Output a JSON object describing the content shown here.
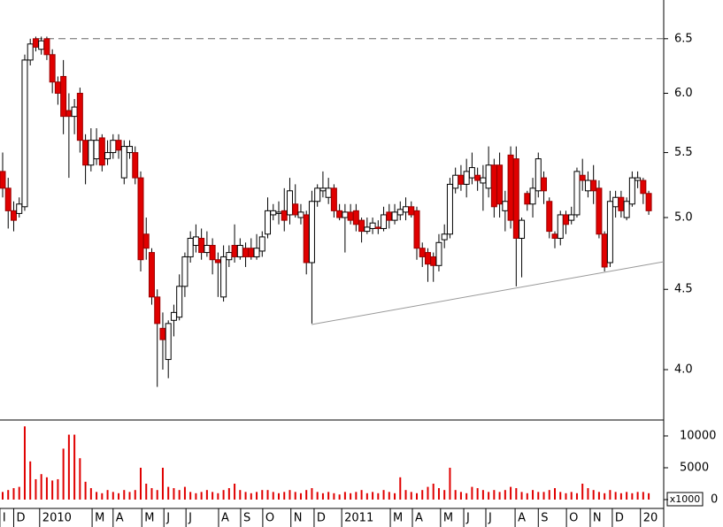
{
  "chart_data": [
    {
      "type": "candlestick",
      "log_scale": true,
      "ylim": [
        3.715,
        6.88
      ],
      "yticks": [
        {
          "value": 6.5,
          "label": "6.5"
        },
        {
          "value": 6,
          "label": "6.0"
        },
        {
          "value": 5.5,
          "label": "5.5"
        },
        {
          "value": 5,
          "label": "5.0"
        },
        {
          "value": 4.5,
          "label": "4.5"
        },
        {
          "value": 4,
          "label": "4.0"
        }
      ],
      "up_color": "#ffffff",
      "down_color": "#e00000",
      "reference_line": 6.5,
      "open": [
        5.35,
        5.22,
        5.05,
        5.03,
        5.08,
        6.3,
        6.5,
        6.4,
        6.5,
        6.35,
        6.1,
        6.15,
        5.85,
        5.8,
        6.0,
        5.6,
        5.4,
        5.45,
        5.62,
        5.45,
        5.5,
        5.6,
        5.3,
        5.5,
        5.5,
        5.3,
        4.88,
        4.75,
        4.45,
        4.25,
        4.06,
        4.3,
        4.32,
        4.52,
        4.72,
        4.8,
        4.85,
        4.75,
        4.8,
        4.7,
        4.45,
        4.7,
        4.8,
        4.72,
        4.78,
        4.78,
        4.72,
        4.76,
        4.88,
        5.02,
        5.03,
        5.05,
        5.02,
        5.1,
        5.0,
        5.02,
        4.68,
        5.12,
        5.2,
        5.15,
        5.22,
        5.05,
        5.0,
        5.04,
        5.05,
        4.98,
        4.9,
        4.92,
        4.93,
        4.92,
        5.04,
        4.98,
        5.02,
        5.04,
        5.08,
        5.05,
        4.78,
        4.75,
        4.72,
        4.66,
        4.84,
        4.88,
        5.22,
        5.32,
        5.25,
        5.3,
        5.32,
        5.26,
        5.22,
        5.4,
        5.4,
        5.05,
        5.48,
        5.45,
        4.85,
        5.18,
        5.1,
        5.2,
        5.3,
        5.12,
        4.88,
        4.85,
        5.02,
        4.98,
        5.02,
        5.32,
        5.2,
        5.28,
        5.22,
        4.88,
        4.68,
        5.08,
        5.15,
        5.0,
        5.1,
        5.28,
        5.28,
        5.18
      ],
      "high": [
        5.5,
        5.3,
        5.12,
        5.15,
        6.35,
        6.5,
        6.52,
        6.52,
        6.52,
        6.4,
        6.15,
        6.3,
        6.0,
        5.95,
        6.05,
        5.65,
        5.7,
        5.7,
        5.65,
        5.6,
        5.65,
        5.65,
        5.6,
        5.6,
        5.55,
        5.35,
        5.0,
        4.78,
        4.5,
        4.35,
        4.3,
        4.4,
        4.6,
        4.75,
        4.9,
        4.95,
        4.92,
        4.9,
        4.85,
        4.75,
        4.8,
        4.8,
        4.95,
        4.85,
        4.82,
        4.85,
        4.88,
        4.9,
        5.15,
        5.1,
        5.12,
        5.22,
        5.3,
        5.25,
        5.1,
        5.05,
        5.2,
        5.25,
        5.35,
        5.3,
        5.25,
        5.1,
        5.1,
        5.1,
        5.1,
        5.0,
        5.0,
        5.0,
        4.98,
        5.08,
        5.1,
        5.1,
        5.12,
        5.15,
        5.12,
        5.08,
        4.82,
        4.78,
        4.75,
        4.88,
        4.95,
        5.3,
        5.38,
        5.4,
        5.45,
        5.5,
        5.38,
        5.4,
        5.55,
        5.45,
        5.5,
        5.2,
        5.55,
        5.55,
        5.0,
        5.2,
        5.3,
        5.5,
        5.35,
        5.15,
        4.9,
        5.05,
        5.05,
        5.08,
        5.38,
        5.45,
        5.35,
        5.4,
        5.28,
        4.9,
        5.2,
        5.2,
        5.2,
        5.15,
        5.35,
        5.35,
        5.3,
        5.2
      ],
      "low": [
        5.15,
        4.92,
        4.9,
        5.0,
        5.05,
        6.25,
        6.38,
        6.35,
        6.3,
        6.0,
        5.9,
        5.65,
        5.3,
        5.65,
        5.5,
        5.25,
        5.35,
        5.4,
        5.35,
        5.4,
        5.45,
        5.45,
        5.25,
        5.45,
        5.25,
        4.62,
        4.7,
        4.4,
        3.9,
        4.0,
        3.95,
        4.2,
        4.3,
        4.45,
        4.68,
        4.75,
        4.7,
        4.72,
        4.6,
        4.45,
        4.42,
        4.65,
        4.68,
        4.7,
        4.65,
        4.7,
        4.7,
        4.72,
        4.85,
        4.98,
        4.95,
        4.9,
        4.95,
        5.0,
        4.95,
        4.6,
        4.28,
        5.08,
        5.15,
        5.1,
        5.0,
        4.98,
        4.75,
        4.95,
        4.9,
        4.82,
        4.88,
        4.88,
        4.88,
        4.9,
        4.92,
        4.95,
        4.98,
        4.98,
        5.0,
        4.7,
        4.65,
        4.55,
        4.55,
        4.62,
        4.78,
        4.85,
        5.18,
        5.2,
        5.15,
        5.25,
        5.2,
        5.05,
        5.15,
        5.0,
        5.0,
        4.9,
        4.92,
        4.52,
        4.58,
        5.05,
        5.0,
        5.15,
        5.1,
        4.85,
        4.78,
        4.8,
        4.88,
        4.95,
        5.0,
        5.2,
        5.15,
        5.1,
        4.85,
        4.62,
        4.65,
        5.0,
        5.0,
        4.98,
        5.08,
        5.22,
        5.1,
        5.02
      ],
      "close": [
        5.22,
        5.05,
        4.98,
        5.1,
        6.3,
        6.45,
        6.42,
        6.48,
        6.35,
        6.1,
        6.0,
        5.8,
        5.8,
        5.88,
        5.6,
        5.4,
        5.6,
        5.6,
        5.4,
        5.5,
        5.6,
        5.52,
        5.55,
        5.55,
        5.3,
        4.7,
        4.78,
        4.45,
        4.28,
        4.18,
        4.28,
        4.35,
        4.52,
        4.72,
        4.85,
        4.86,
        4.75,
        4.8,
        4.7,
        4.68,
        4.72,
        4.75,
        4.72,
        4.8,
        4.72,
        4.72,
        4.78,
        4.86,
        5.05,
        5.05,
        5.04,
        4.98,
        5.2,
        5.02,
        5.04,
        4.68,
        5.12,
        5.22,
        5.22,
        5.22,
        5.05,
        5.0,
        5.04,
        4.98,
        4.95,
        4.9,
        4.93,
        4.96,
        4.92,
        5.02,
        4.98,
        5.04,
        5.06,
        5.08,
        5.02,
        4.78,
        4.72,
        4.67,
        4.66,
        4.82,
        4.88,
        5.25,
        5.32,
        5.25,
        5.35,
        5.38,
        5.28,
        5.3,
        5.4,
        5.08,
        5.1,
        5.12,
        4.98,
        4.85,
        4.98,
        5.1,
        5.22,
        5.45,
        5.2,
        4.9,
        4.85,
        5.02,
        4.95,
        5.02,
        5.35,
        5.28,
        5.28,
        5.2,
        4.88,
        4.65,
        5.12,
        5.15,
        5.05,
        5.12,
        5.3,
        5.3,
        5.18,
        5.05
      ]
    },
    {
      "type": "bar",
      "color": "#e00000",
      "ylim": [
        0,
        12500
      ],
      "yticks": [
        10000,
        5000,
        0
      ],
      "unit_label": "x1000",
      "values": [
        1200,
        1500,
        1800,
        2000,
        11500,
        6000,
        3200,
        4000,
        3500,
        3000,
        3200,
        8000,
        10200,
        10200,
        6500,
        2800,
        1800,
        1200,
        1000,
        1500,
        1200,
        1000,
        1500,
        1200,
        1500,
        5000,
        2500,
        1800,
        1500,
        5000,
        2000,
        1800,
        1500,
        2000,
        1200,
        1000,
        1200,
        1500,
        1200,
        1000,
        1500,
        1800,
        2500,
        1500,
        1200,
        1000,
        1200,
        1500,
        1500,
        1200,
        1000,
        1200,
        1500,
        1200,
        1000,
        1500,
        1800,
        1200,
        1000,
        1200,
        1000,
        800,
        1200,
        1000,
        1200,
        1500,
        1000,
        1200,
        1000,
        1500,
        1200,
        1000,
        3500,
        1500,
        1200,
        1000,
        1500,
        2000,
        2500,
        1800,
        1500,
        5000,
        1500,
        1200,
        1000,
        2000,
        1800,
        1500,
        1200,
        1500,
        1200,
        1500,
        2000,
        1800,
        1200,
        1000,
        1500,
        1200,
        1200,
        1500,
        1800,
        1200,
        1000,
        1200,
        1000,
        2500,
        1800,
        1500,
        1200,
        1000,
        1500,
        1200,
        1000,
        1200,
        1000,
        1200,
        1200,
        1000
      ],
      "xticks": [
        {
          "value": -0.5,
          "label": "I"
        },
        {
          "value": 2,
          "label": "D"
        },
        {
          "value": 6.7,
          "label": "2010"
        },
        {
          "value": 16.2,
          "label": "M"
        },
        {
          "value": 20,
          "label": "A"
        },
        {
          "value": 25.2,
          "label": "M"
        },
        {
          "value": 29.2,
          "label": "J"
        },
        {
          "value": 33.2,
          "label": "J"
        },
        {
          "value": 39.1,
          "label": "A"
        },
        {
          "value": 43.1,
          "label": "S"
        },
        {
          "value": 47.1,
          "label": "O"
        },
        {
          "value": 52.2,
          "label": "N"
        },
        {
          "value": 56.4,
          "label": "D"
        },
        {
          "value": 61.4,
          "label": "2011"
        },
        {
          "value": 70.2,
          "label": "M"
        },
        {
          "value": 74.2,
          "label": "A"
        },
        {
          "value": 79.3,
          "label": "M"
        },
        {
          "value": 83.5,
          "label": "J"
        },
        {
          "value": 87.5,
          "label": "J"
        },
        {
          "value": 92.8,
          "label": "A"
        },
        {
          "value": 97,
          "label": "S"
        },
        {
          "value": 102.1,
          "label": "O"
        },
        {
          "value": 106.4,
          "label": "N"
        },
        {
          "value": 110.4,
          "label": "D"
        },
        {
          "value": 115.5,
          "label": "20"
        }
      ]
    }
  ]
}
